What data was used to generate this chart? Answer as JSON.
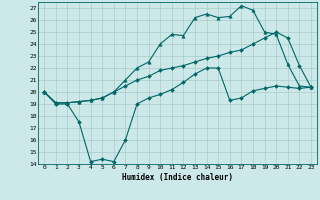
{
  "title": "",
  "xlabel": "Humidex (Indice chaleur)",
  "bg_color": "#cce8e8",
  "grid_color": "#aacccc",
  "line_color": "#006666",
  "xlim": [
    -0.5,
    23.5
  ],
  "ylim": [
    14,
    27.5
  ],
  "xticks": [
    0,
    1,
    2,
    3,
    4,
    5,
    6,
    7,
    8,
    9,
    10,
    11,
    12,
    13,
    14,
    15,
    16,
    17,
    18,
    19,
    20,
    21,
    22,
    23
  ],
  "yticks": [
    14,
    15,
    16,
    17,
    18,
    19,
    20,
    21,
    22,
    23,
    24,
    25,
    26,
    27
  ],
  "line1_x": [
    0,
    1,
    2,
    3,
    4,
    5,
    6,
    7,
    8,
    9,
    10,
    11,
    12,
    13,
    14,
    15,
    16,
    17,
    18,
    19,
    20,
    21,
    22,
    23
  ],
  "line1_y": [
    20,
    19,
    19,
    17.5,
    14.2,
    14.4,
    14.2,
    16,
    19,
    19.5,
    19.8,
    20.2,
    20.8,
    21.5,
    22,
    22,
    19.3,
    19.5,
    20.1,
    20.3,
    20.5,
    20.4,
    20.3,
    20.4
  ],
  "line2_x": [
    0,
    1,
    2,
    3,
    4,
    5,
    6,
    7,
    8,
    9,
    10,
    11,
    12,
    13,
    14,
    15,
    16,
    17,
    18,
    19,
    20,
    21,
    22,
    23
  ],
  "line2_y": [
    20,
    19.1,
    19.1,
    19.2,
    19.3,
    19.5,
    20,
    21,
    22,
    22.5,
    24,
    24.8,
    24.7,
    26.2,
    26.5,
    26.2,
    26.3,
    27.2,
    26.8,
    25,
    24.8,
    22.3,
    20.5,
    20.4
  ],
  "line3_x": [
    0,
    1,
    2,
    3,
    4,
    5,
    6,
    7,
    8,
    9,
    10,
    11,
    12,
    13,
    14,
    15,
    16,
    17,
    18,
    19,
    20,
    21,
    22,
    23
  ],
  "line3_y": [
    20,
    19.1,
    19.1,
    19.2,
    19.3,
    19.5,
    20,
    20.5,
    21,
    21.3,
    21.8,
    22,
    22.2,
    22.5,
    22.8,
    23,
    23.3,
    23.5,
    24,
    24.5,
    25,
    24.5,
    22.2,
    20.4
  ]
}
